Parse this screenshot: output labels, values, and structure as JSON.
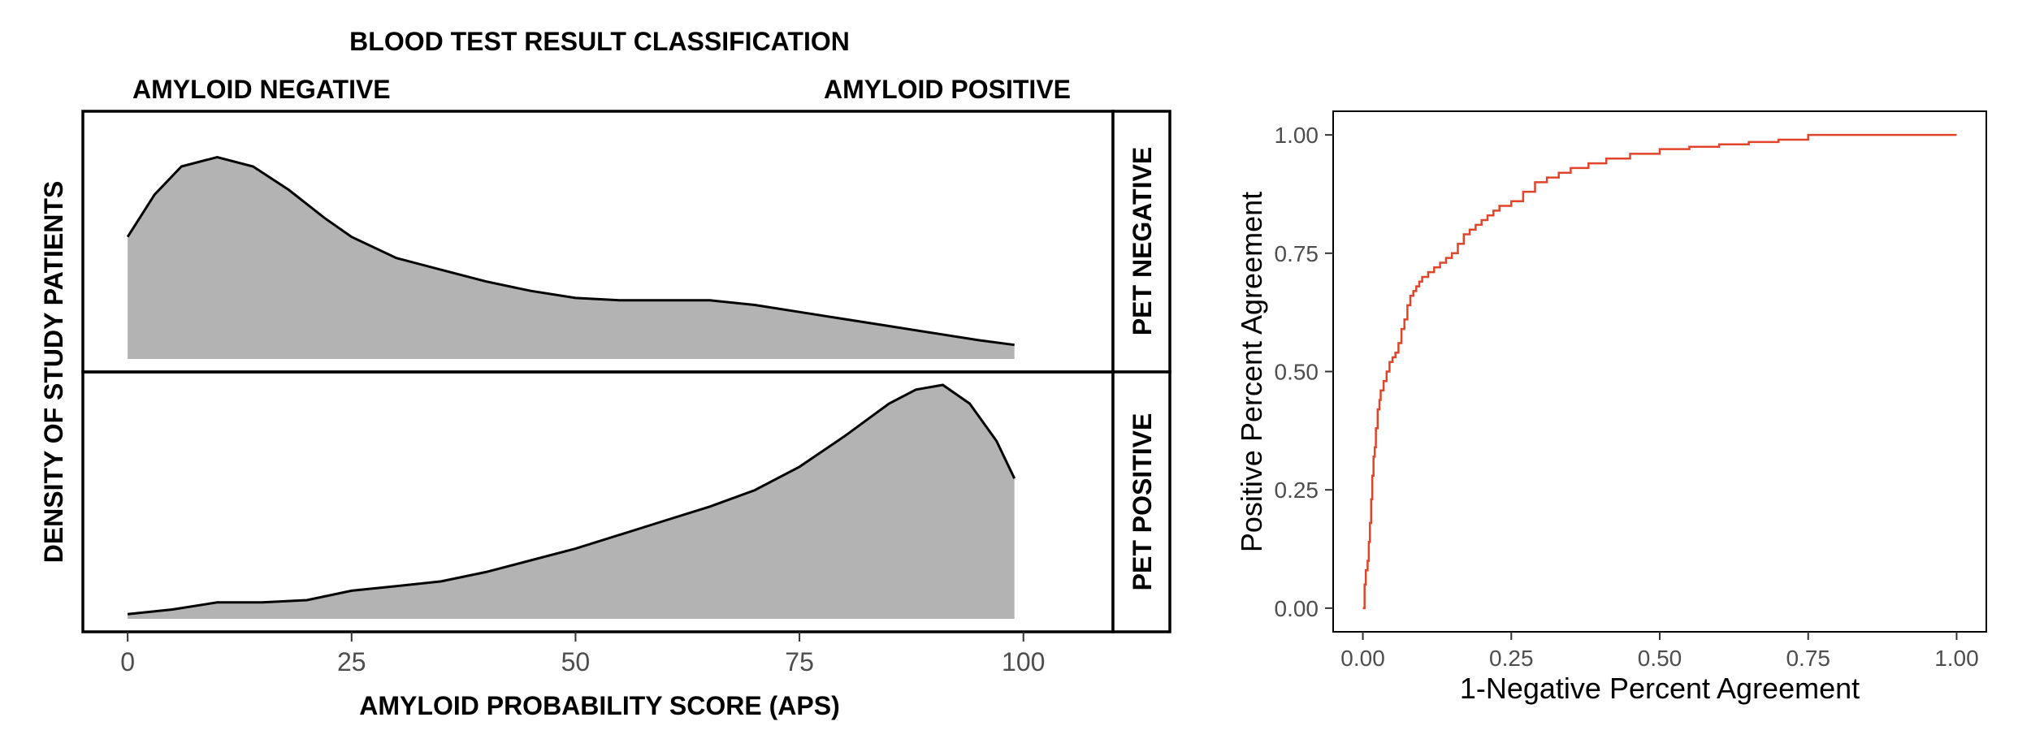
{
  "figure": {
    "density_panel": {
      "title": "BLOOD TEST RESULT CLASSIFICATION",
      "class_left": "AMYLOID NEGATIVE",
      "class_right": "AMYLOID POSITIVE",
      "facets": [
        {
          "label": "PET NEGATIVE"
        },
        {
          "label": "PET POSITIVE"
        }
      ]
    },
    "roc_panel": {}
  },
  "chart_data": [
    {
      "type": "area",
      "title": "BLOOD TEST RESULT CLASSIFICATION",
      "xlabel": "AMYLOID PROBABILITY SCORE (APS)",
      "ylabel": "DENSITY OF STUDY PATIENTS",
      "xlim": [
        -5,
        110
      ],
      "xticks": [
        0,
        25,
        50,
        75,
        100
      ],
      "grid": false,
      "fill_color": "#b3b3b3",
      "line_color": "#000000",
      "series": [
        {
          "name": "PET NEGATIVE",
          "x": [
            0,
            3,
            6,
            10,
            14,
            18,
            22,
            25,
            30,
            35,
            40,
            45,
            50,
            55,
            60,
            65,
            70,
            75,
            80,
            85,
            90,
            95,
            99
          ],
          "y": [
            0.52,
            0.7,
            0.82,
            0.86,
            0.82,
            0.72,
            0.6,
            0.52,
            0.43,
            0.38,
            0.33,
            0.29,
            0.26,
            0.25,
            0.25,
            0.25,
            0.23,
            0.2,
            0.17,
            0.14,
            0.11,
            0.08,
            0.06
          ]
        },
        {
          "name": "PET POSITIVE",
          "x": [
            0,
            5,
            10,
            15,
            20,
            25,
            30,
            35,
            40,
            45,
            50,
            55,
            60,
            65,
            70,
            75,
            80,
            85,
            88,
            91,
            94,
            97,
            99
          ],
          "y": [
            0.02,
            0.04,
            0.07,
            0.07,
            0.08,
            0.12,
            0.14,
            0.16,
            0.2,
            0.25,
            0.3,
            0.36,
            0.42,
            0.48,
            0.55,
            0.65,
            0.78,
            0.92,
            0.98,
            1.0,
            0.92,
            0.76,
            0.6
          ]
        }
      ]
    },
    {
      "type": "line",
      "xlabel": "1-Negative Percent Agreement",
      "ylabel": "Positive Percent Agreement",
      "xlim": [
        -0.05,
        1.05
      ],
      "ylim": [
        -0.05,
        1.05
      ],
      "xticks": [
        "0.00",
        "0.25",
        "0.50",
        "0.75",
        "1.00"
      ],
      "yticks": [
        "0.00",
        "0.25",
        "0.50",
        "0.75",
        "1.00"
      ],
      "grid": false,
      "line_color": "#e0442a",
      "series": [
        {
          "x": [
            0.0,
            0.003,
            0.005,
            0.008,
            0.01,
            0.012,
            0.014,
            0.016,
            0.018,
            0.02,
            0.022,
            0.025,
            0.028,
            0.03,
            0.035,
            0.04,
            0.045,
            0.05,
            0.055,
            0.06,
            0.065,
            0.07,
            0.075,
            0.08,
            0.085,
            0.09,
            0.095,
            0.1,
            0.11,
            0.12,
            0.13,
            0.14,
            0.15,
            0.16,
            0.17,
            0.18,
            0.19,
            0.2,
            0.21,
            0.22,
            0.23,
            0.25,
            0.27,
            0.29,
            0.31,
            0.33,
            0.35,
            0.38,
            0.41,
            0.45,
            0.5,
            0.55,
            0.6,
            0.65,
            0.7,
            0.75,
            1.0
          ],
          "y": [
            0.0,
            0.05,
            0.08,
            0.1,
            0.14,
            0.18,
            0.23,
            0.28,
            0.32,
            0.34,
            0.38,
            0.42,
            0.44,
            0.46,
            0.48,
            0.5,
            0.52,
            0.53,
            0.54,
            0.56,
            0.59,
            0.61,
            0.64,
            0.66,
            0.67,
            0.68,
            0.69,
            0.7,
            0.71,
            0.72,
            0.73,
            0.74,
            0.75,
            0.77,
            0.79,
            0.8,
            0.81,
            0.82,
            0.83,
            0.84,
            0.85,
            0.86,
            0.88,
            0.9,
            0.91,
            0.92,
            0.93,
            0.94,
            0.95,
            0.96,
            0.97,
            0.975,
            0.98,
            0.985,
            0.99,
            1.0,
            1.0
          ]
        }
      ]
    }
  ]
}
